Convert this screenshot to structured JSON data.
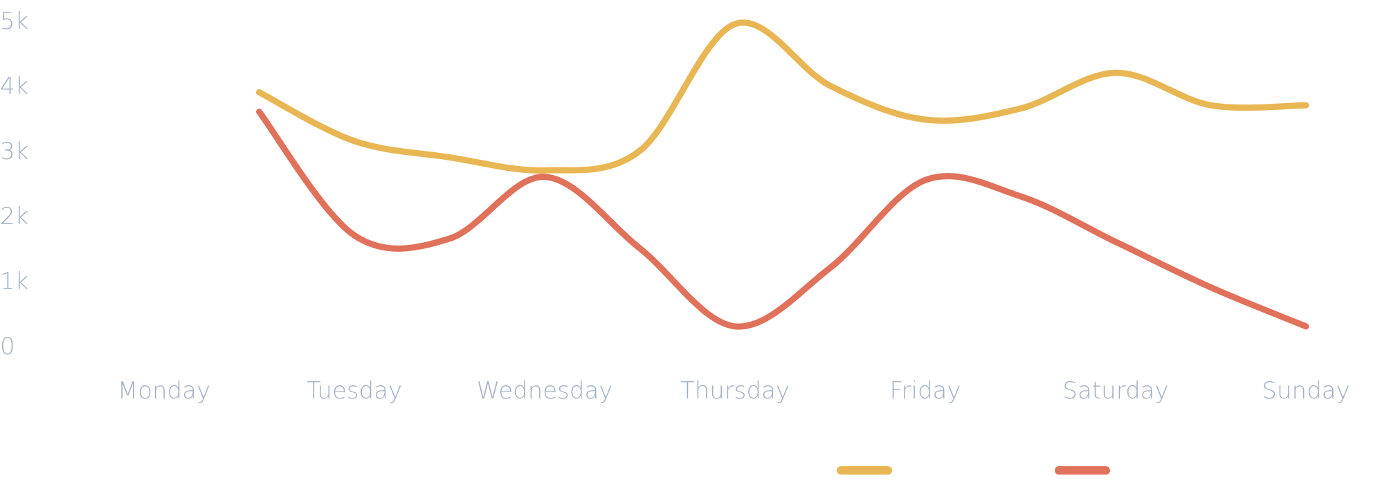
{
  "chart_data": {
    "type": "line",
    "categories": [
      "Monday",
      "Tuesday",
      "Wednesday",
      "Thursday",
      "Friday",
      "Saturday",
      "Sunday"
    ],
    "y_ticks": [
      "0",
      "1k",
      "2k",
      "3k",
      "4k",
      "5k"
    ],
    "ylim": [
      0,
      5000
    ],
    "grid": false,
    "legend": "bottom-right",
    "x": [
      0.5,
      1,
      1.5,
      2,
      2.5,
      3,
      3.5,
      4,
      4.5,
      5,
      5.5,
      6
    ],
    "series": [
      {
        "color": "#e8b653",
        "values": [
          3900,
          3150,
          2900,
          2700,
          3000,
          4950,
          4000,
          3480,
          3650,
          4200,
          3700,
          3700
        ]
      },
      {
        "color": "#e0715a",
        "values": [
          3600,
          1700,
          1650,
          2600,
          1500,
          300,
          1200,
          2550,
          2300,
          1600,
          900,
          300
        ]
      }
    ]
  }
}
